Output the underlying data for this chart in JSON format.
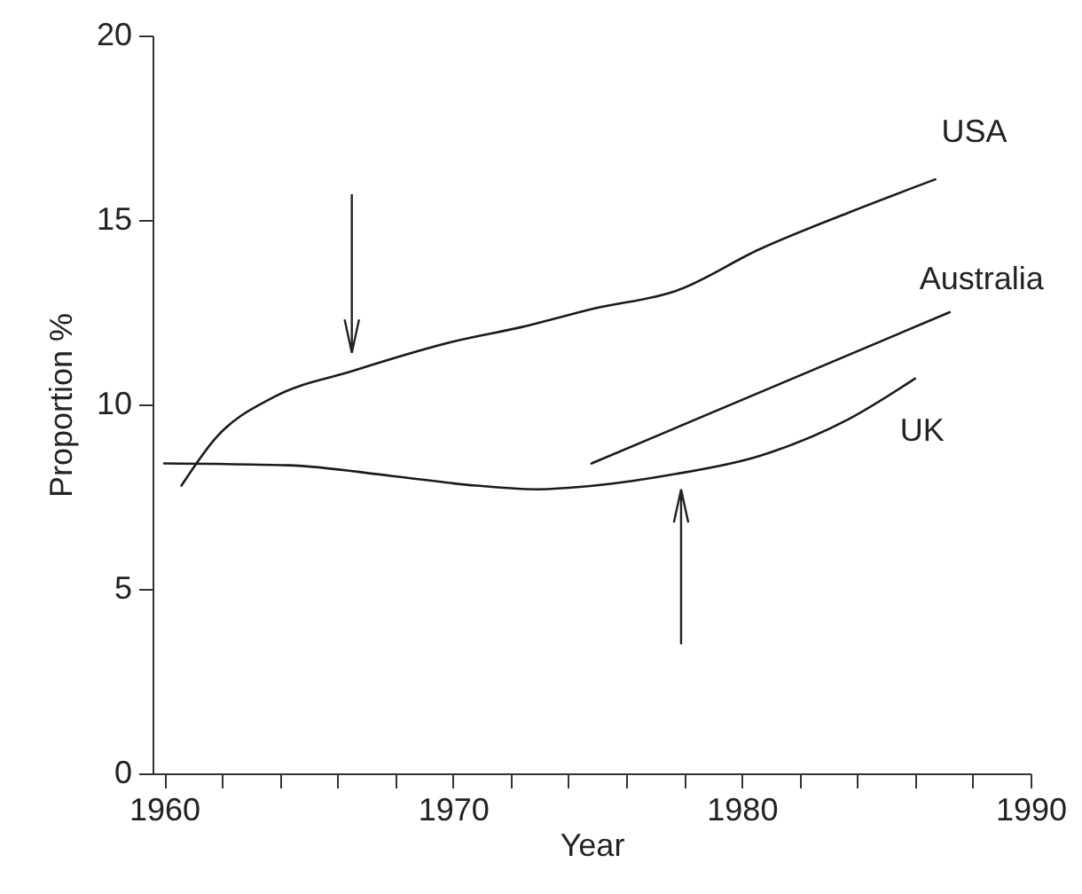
{
  "chart_data": {
    "type": "line",
    "xlabel": "Year",
    "ylabel": "Proportion %",
    "xlim": [
      1959.6,
      1990
    ],
    "ylim": [
      0,
      20
    ],
    "xticks": [
      1960,
      {
        "value": 1962,
        "label": null
      },
      {
        "value": 1964,
        "label": null
      },
      {
        "value": 1966,
        "label": null
      },
      {
        "value": 1968,
        "label": null
      },
      1970,
      {
        "value": 1972,
        "label": null
      },
      {
        "value": 1974,
        "label": null
      },
      {
        "value": 1976,
        "label": null
      },
      {
        "value": 1978,
        "label": null
      },
      1980,
      {
        "value": 1982,
        "label": null
      },
      {
        "value": 1984,
        "label": null
      },
      {
        "value": 1986,
        "label": null
      },
      {
        "value": 1988,
        "label": null
      },
      1990
    ],
    "yticks": [
      0,
      5,
      10,
      15,
      20
    ],
    "grid": false,
    "legend": false,
    "marker": "none",
    "line_style": "solid",
    "series": [
      {
        "name": "USA",
        "color": "#1a1a1a",
        "x": [
          1960.6,
          1961.8,
          1963.8,
          1966.5,
          1970.0,
          1972.4,
          1974.9,
          1977.8,
          1980.6,
          1983.7,
          1986.7
        ],
        "values": [
          7.8,
          9.1,
          10.2,
          10.9,
          11.7,
          12.1,
          12.6,
          13.1,
          14.2,
          15.2,
          16.1
        ]
      },
      {
        "name": "Australia",
        "color": "#1a1a1a",
        "x": [
          1974.8,
          1987.2
        ],
        "values": [
          8.4,
          12.5
        ]
      },
      {
        "name": "UK",
        "color": "#1a1a1a",
        "x": [
          1960.0,
          1964.3,
          1967.9,
          1970.8,
          1972.9,
          1974.9,
          1977.6,
          1980.6,
          1983.7,
          1986.0
        ],
        "values": [
          8.4,
          8.35,
          8.06,
          7.8,
          7.7,
          7.8,
          8.1,
          8.6,
          9.6,
          10.7
        ]
      }
    ]
  }
}
